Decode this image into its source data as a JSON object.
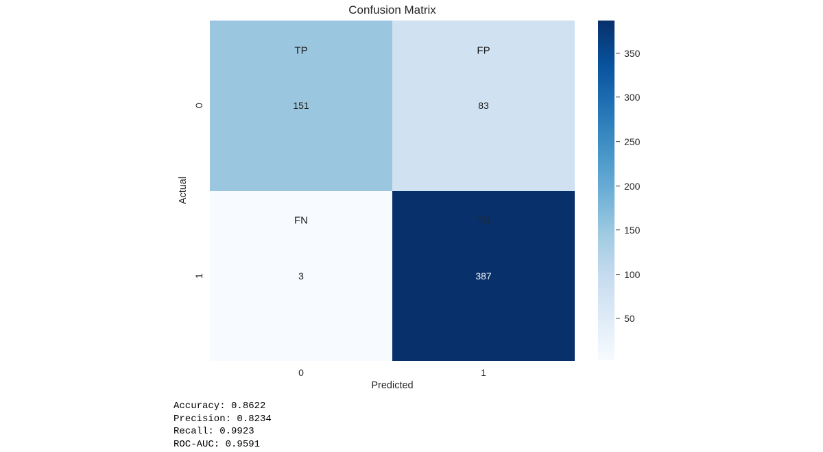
{
  "chart_data": {
    "type": "heatmap",
    "title": "Confusion Matrix",
    "xlabel": "Predicted",
    "ylabel": "Actual",
    "x_ticklabels": [
      "0",
      "1"
    ],
    "y_ticklabels": [
      "0",
      "1"
    ],
    "matrix": [
      [
        151,
        83
      ],
      [
        3,
        387
      ]
    ],
    "cells": [
      {
        "name": "cell-tp",
        "label": "TP",
        "value": "151",
        "row": 0,
        "col": 0,
        "bg": "#9ac6e0",
        "label_color": "#1a1a1a",
        "value_color": "#1a1a1a"
      },
      {
        "name": "cell-fp",
        "label": "FP",
        "value": "83",
        "row": 0,
        "col": 1,
        "bg": "#d0e2f2",
        "label_color": "#1a1a1a",
        "value_color": "#1a1a1a"
      },
      {
        "name": "cell-fn",
        "label": "FN",
        "value": "3",
        "row": 1,
        "col": 0,
        "bg": "#f7fbff",
        "label_color": "#1a1a1a",
        "value_color": "#1a1a1a"
      },
      {
        "name": "cell-tn",
        "label": "TN",
        "value": "387",
        "row": 1,
        "col": 1,
        "bg": "#08306b",
        "label_color": "#1e2b3a",
        "value_color": "#f2f4f6"
      }
    ],
    "colorbar": {
      "vmin": 3,
      "vmax": 387,
      "ticks": [
        "50",
        "100",
        "150",
        "200",
        "250",
        "300",
        "350"
      ],
      "gradient_stops_top_to_bottom": [
        "#08306b",
        "#08519c",
        "#2171b5",
        "#4292c6",
        "#6baed6",
        "#9ecae1",
        "#c6dbef",
        "#deebf7",
        "#f7fbff"
      ]
    },
    "legend_position": "right-colorbar",
    "grid": false
  },
  "metrics_text": {
    "lines": [
      "Accuracy: 0.8622",
      "Precision: 0.8234",
      "Recall: 0.9923",
      "ROC-AUC: 0.9591"
    ]
  },
  "colors": {
    "background": "#ffffff",
    "text": "#262626",
    "cmap_max": "#08306b",
    "cmap_min": "#f7fbff"
  }
}
